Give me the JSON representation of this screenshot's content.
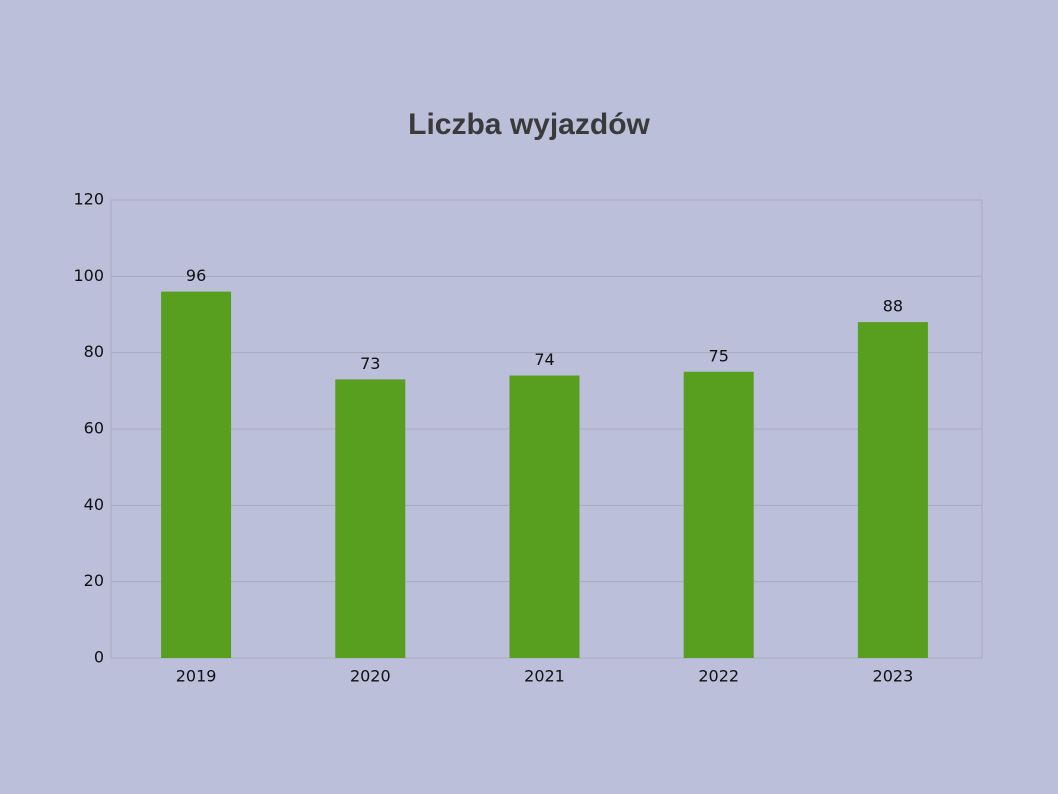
{
  "chart_data": {
    "type": "bar",
    "title": "Liczba wyjazdów",
    "categories": [
      "2019",
      "2020",
      "2021",
      "2022",
      "2023"
    ],
    "values": [
      96,
      73,
      74,
      75,
      88
    ],
    "color": "#589e1f",
    "ylim": [
      0,
      120
    ],
    "yticks": [
      0,
      20,
      40,
      60,
      80,
      100,
      120
    ],
    "grid": true
  }
}
